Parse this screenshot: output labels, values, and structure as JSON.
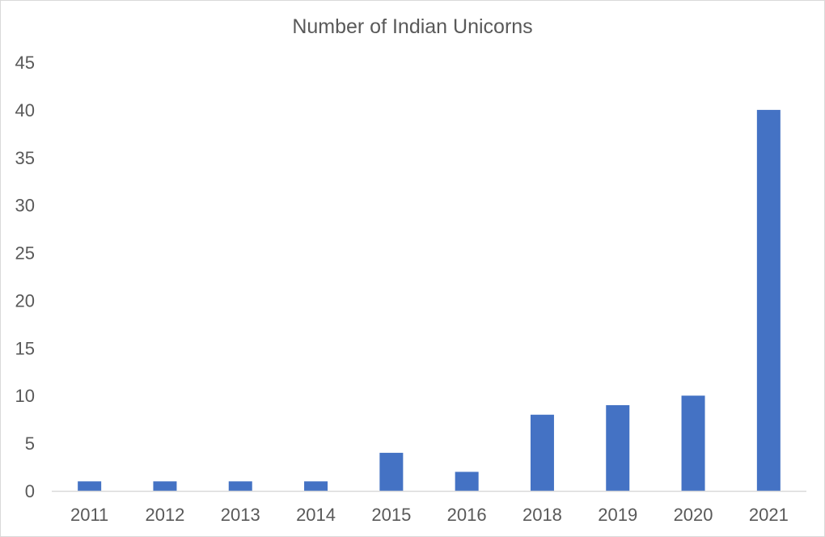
{
  "chart_data": {
    "type": "bar",
    "title": "Number of Indian Unicorns",
    "categories": [
      "2011",
      "2012",
      "2013",
      "2014",
      "2015",
      "2016",
      "2018",
      "2019",
      "2020",
      "2021"
    ],
    "values": [
      1,
      1,
      1,
      1,
      4,
      2,
      8,
      9,
      10,
      40
    ],
    "xlabel": "",
    "ylabel": "",
    "ylim": [
      0,
      45
    ],
    "yticks": [
      0,
      5,
      10,
      15,
      20,
      25,
      30,
      35,
      40,
      45
    ],
    "grid": false,
    "legend": "none",
    "bar_color": "#4472C4",
    "axis_color": "#d9d9d9"
  }
}
